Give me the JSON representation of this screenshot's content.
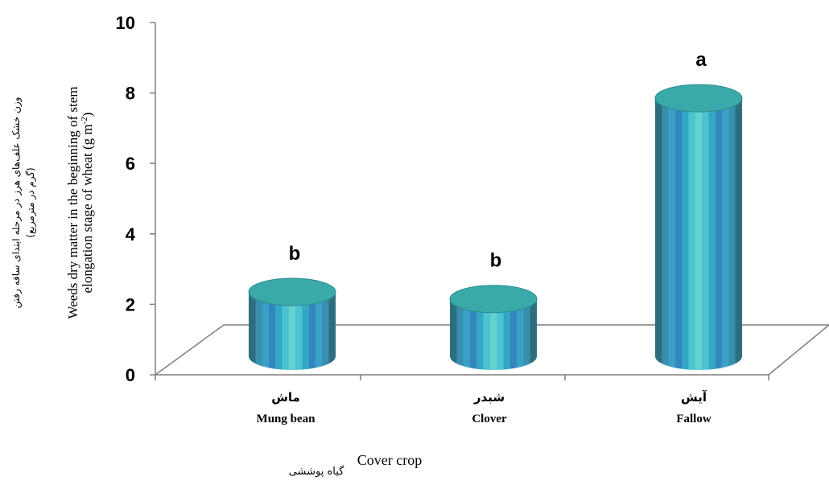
{
  "chart_data": {
    "type": "bar",
    "categories_fa": [
      "ماش",
      "شبدر",
      "آیش"
    ],
    "categories": [
      "Mung bean",
      "Clover",
      "Fallow"
    ],
    "values": [
      2.9,
      2.7,
      8.4
    ],
    "significance": [
      "b",
      "b",
      "a"
    ],
    "ylim": [
      0,
      10
    ],
    "yticks": [
      0,
      2,
      4,
      6,
      8,
      10
    ],
    "ylabel_fa_line1": "وزن خشک علف‌های هرز در مرحله ابتدای ساقه رفتن",
    "ylabel_fa_line2": "(گرم در مترمربع)",
    "ylabel_en_line1": "Weeds dry matter in the beginning of stem",
    "ylabel_en_line2": "elongation stage of wheat (g m",
    "ylabel_en_sup": "-2",
    "ylabel_en_close": ")",
    "xlabel_en": "Cover crop",
    "xlabel_fa": "گیاه پوششی",
    "colors": {
      "stripes": [
        "#2c6e80",
        "#3a8fae",
        "#3aa0c8",
        "#3486bc",
        "#33a7c6",
        "#4cc4cf",
        "#66d2cf",
        "#4cc4cf",
        "#33a7c6",
        "#3486bc",
        "#3aa0c8",
        "#3a8fae",
        "#2c6e80"
      ],
      "top": "#3aa9a9",
      "top_rim": "#2c8c8c",
      "axis": "#7f7f7f"
    }
  }
}
